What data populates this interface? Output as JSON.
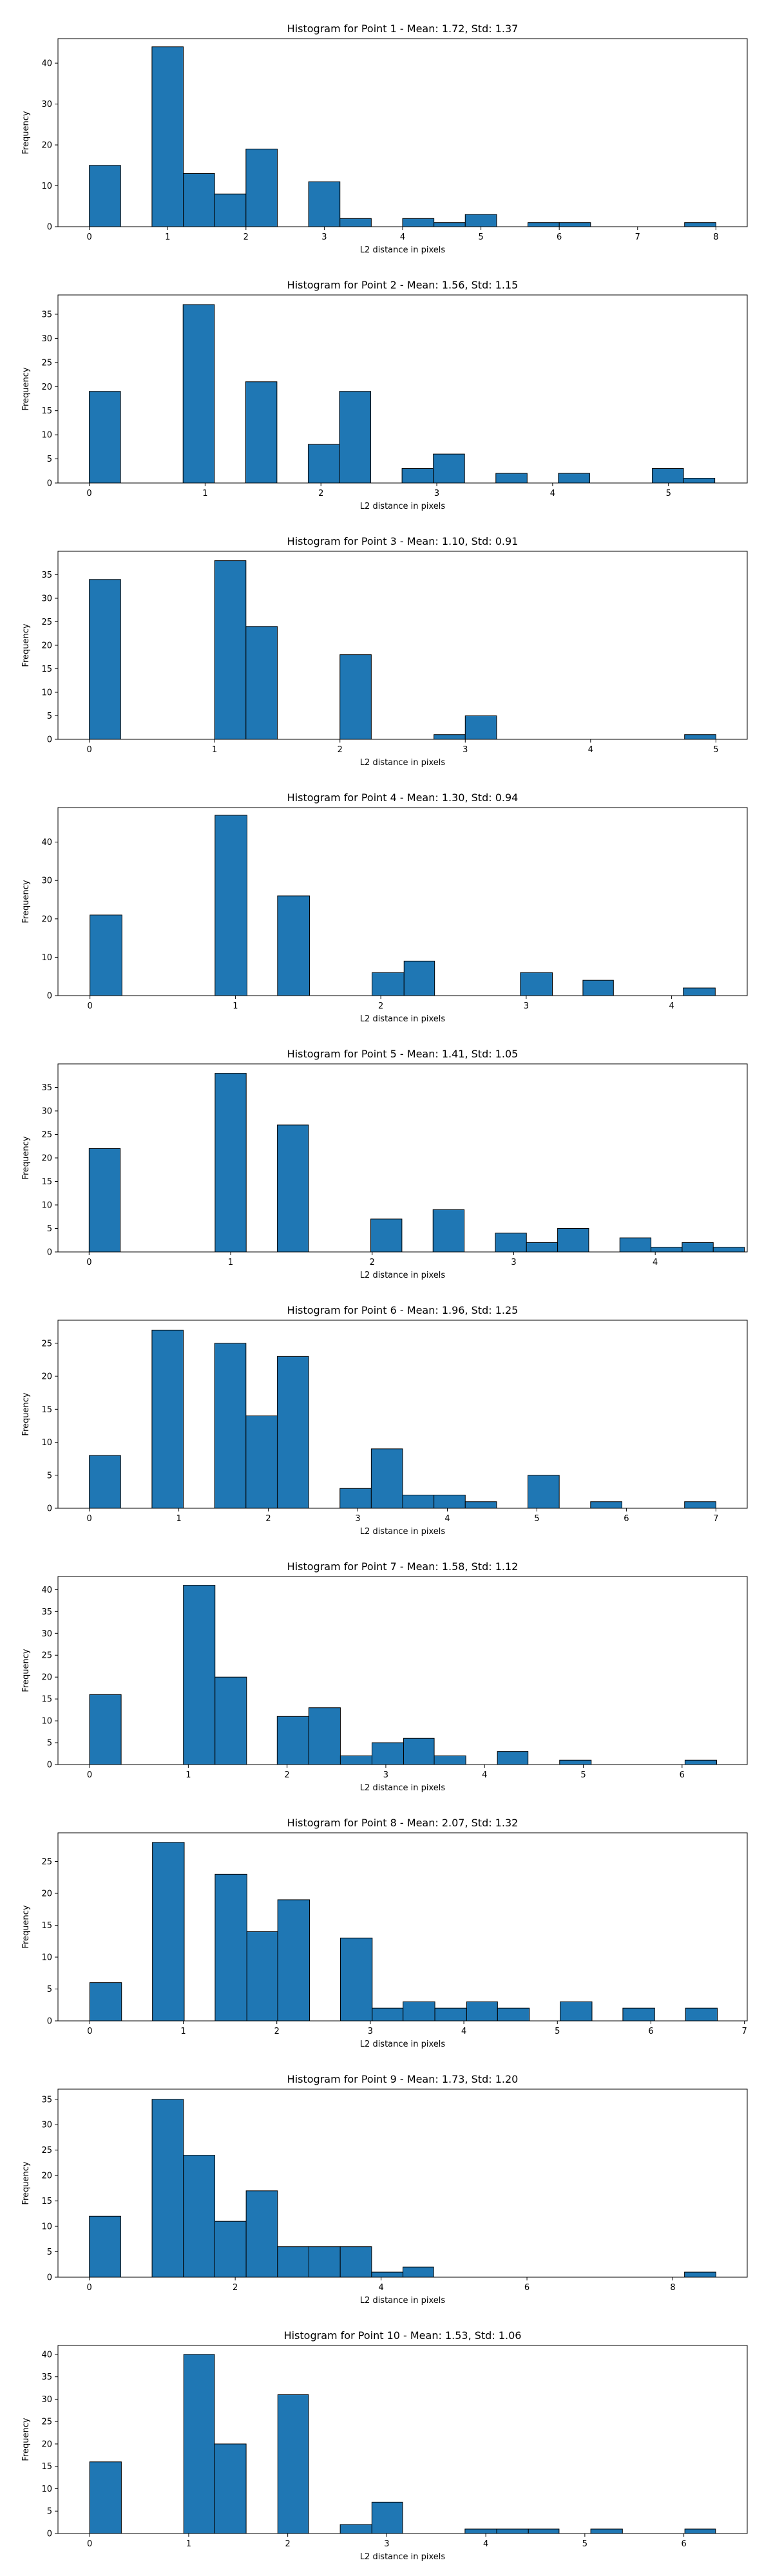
{
  "colors": {
    "bar_fill": "#1f77b4",
    "bar_edge": "#000000",
    "axes": "#000000",
    "background": "#ffffff"
  },
  "chart_data": [
    {
      "type": "bar",
      "title": "Histogram for Point 1 - Mean: 1.72, Std: 1.37",
      "xlabel": "L2 distance in pixels",
      "ylabel": "Frequency",
      "xlim": [
        -0.4,
        8.4
      ],
      "ylim": [
        0,
        46
      ],
      "xticks": [
        0,
        1,
        2,
        3,
        4,
        5,
        6,
        7,
        8
      ],
      "yticks": [
        0,
        10,
        20,
        30,
        40
      ],
      "grid": false,
      "bins": [
        {
          "x0": 0.0,
          "x1": 0.4,
          "count": 15
        },
        {
          "x0": 0.8,
          "x1": 1.2,
          "count": 44
        },
        {
          "x0": 1.2,
          "x1": 1.6,
          "count": 13
        },
        {
          "x0": 1.6,
          "x1": 2.0,
          "count": 8
        },
        {
          "x0": 2.0,
          "x1": 2.4,
          "count": 19
        },
        {
          "x0": 2.8,
          "x1": 3.2,
          "count": 11
        },
        {
          "x0": 3.2,
          "x1": 3.6,
          "count": 2
        },
        {
          "x0": 4.0,
          "x1": 4.4,
          "count": 2
        },
        {
          "x0": 4.4,
          "x1": 4.8,
          "count": 1
        },
        {
          "x0": 4.8,
          "x1": 5.2,
          "count": 3
        },
        {
          "x0": 5.6,
          "x1": 6.0,
          "count": 1
        },
        {
          "x0": 6.0,
          "x1": 6.4,
          "count": 1
        },
        {
          "x0": 7.6,
          "x1": 8.0,
          "count": 1
        }
      ]
    },
    {
      "type": "bar",
      "title": "Histogram for Point 2 - Mean: 1.56, Std: 1.15",
      "xlabel": "L2 distance in pixels",
      "ylabel": "Frequency",
      "xlim": [
        -0.27,
        5.68
      ],
      "ylim": [
        0,
        39
      ],
      "xticks": [
        0,
        1,
        2,
        3,
        4,
        5
      ],
      "yticks": [
        0,
        5,
        10,
        15,
        20,
        25,
        30,
        35
      ],
      "grid": false,
      "bins": [
        {
          "x0": 0.0,
          "x1": 0.27,
          "count": 19
        },
        {
          "x0": 0.81,
          "x1": 1.08,
          "count": 37
        },
        {
          "x0": 1.35,
          "x1": 1.62,
          "count": 21
        },
        {
          "x0": 1.89,
          "x1": 2.16,
          "count": 8
        },
        {
          "x0": 2.16,
          "x1": 2.43,
          "count": 19
        },
        {
          "x0": 2.7,
          "x1": 2.97,
          "count": 3
        },
        {
          "x0": 2.97,
          "x1": 3.24,
          "count": 6
        },
        {
          "x0": 3.51,
          "x1": 3.78,
          "count": 2
        },
        {
          "x0": 4.05,
          "x1": 4.32,
          "count": 2
        },
        {
          "x0": 4.86,
          "x1": 5.13,
          "count": 3
        },
        {
          "x0": 5.13,
          "x1": 5.4,
          "count": 1
        }
      ]
    },
    {
      "type": "bar",
      "title": "Histogram for Point 3 - Mean: 1.10, Std: 0.91",
      "xlabel": "L2 distance in pixels",
      "ylabel": "Frequency",
      "xlim": [
        -0.25,
        5.25
      ],
      "ylim": [
        0,
        40
      ],
      "xticks": [
        0,
        1,
        2,
        3,
        4,
        5
      ],
      "yticks": [
        0,
        5,
        10,
        15,
        20,
        25,
        30,
        35
      ],
      "grid": false,
      "bins": [
        {
          "x0": 0.0,
          "x1": 0.25,
          "count": 34
        },
        {
          "x0": 1.0,
          "x1": 1.25,
          "count": 38
        },
        {
          "x0": 1.25,
          "x1": 1.5,
          "count": 24
        },
        {
          "x0": 2.0,
          "x1": 2.25,
          "count": 18
        },
        {
          "x0": 2.75,
          "x1": 3.0,
          "count": 1
        },
        {
          "x0": 3.0,
          "x1": 3.25,
          "count": 5
        },
        {
          "x0": 4.75,
          "x1": 5.0,
          "count": 1
        }
      ]
    },
    {
      "type": "bar",
      "title": "Histogram for Point 4 - Mean: 1.30, Std: 0.94",
      "xlabel": "L2 distance in pixels",
      "ylabel": "Frequency",
      "xlim": [
        -0.22,
        4.52
      ],
      "ylim": [
        0,
        49
      ],
      "xticks": [
        0,
        1,
        2,
        3,
        4
      ],
      "yticks": [
        0,
        10,
        20,
        30,
        40
      ],
      "grid": false,
      "bins": [
        {
          "x0": 0.0,
          "x1": 0.22,
          "count": 21
        },
        {
          "x0": 0.86,
          "x1": 1.08,
          "count": 47
        },
        {
          "x0": 1.29,
          "x1": 1.51,
          "count": 26
        },
        {
          "x0": 1.94,
          "x1": 2.16,
          "count": 6
        },
        {
          "x0": 2.16,
          "x1": 2.37,
          "count": 9
        },
        {
          "x0": 2.96,
          "x1": 3.18,
          "count": 6
        },
        {
          "x0": 3.39,
          "x1": 3.6,
          "count": 4
        },
        {
          "x0": 4.08,
          "x1": 4.3,
          "count": 2
        }
      ]
    },
    {
      "type": "bar",
      "title": "Histogram for Point 5 - Mean: 1.41, Std: 1.05",
      "xlabel": "L2 distance in pixels",
      "ylabel": "Frequency",
      "xlim": [
        -0.22,
        4.65
      ],
      "ylim": [
        0,
        40
      ],
      "xticks": [
        0,
        1,
        2,
        3,
        4
      ],
      "yticks": [
        0,
        5,
        10,
        15,
        20,
        25,
        30,
        35
      ],
      "grid": false,
      "bins": [
        {
          "x0": 0.0,
          "x1": 0.22,
          "count": 22
        },
        {
          "x0": 0.89,
          "x1": 1.11,
          "count": 38
        },
        {
          "x0": 1.33,
          "x1": 1.55,
          "count": 27
        },
        {
          "x0": 1.99,
          "x1": 2.21,
          "count": 7
        },
        {
          "x0": 2.43,
          "x1": 2.65,
          "count": 9
        },
        {
          "x0": 2.87,
          "x1": 3.09,
          "count": 4
        },
        {
          "x0": 3.09,
          "x1": 3.31,
          "count": 2
        },
        {
          "x0": 3.31,
          "x1": 3.53,
          "count": 5
        },
        {
          "x0": 3.75,
          "x1": 3.97,
          "count": 3
        },
        {
          "x0": 3.97,
          "x1": 4.19,
          "count": 1
        },
        {
          "x0": 4.19,
          "x1": 4.41,
          "count": 2
        },
        {
          "x0": 4.41,
          "x1": 4.63,
          "count": 1
        }
      ]
    },
    {
      "type": "bar",
      "title": "Histogram for Point 6 - Mean: 1.96, Std: 1.25",
      "xlabel": "L2 distance in pixels",
      "ylabel": "Frequency",
      "xlim": [
        -0.35,
        7.35
      ],
      "ylim": [
        0,
        28.5
      ],
      "xticks": [
        0,
        1,
        2,
        3,
        4,
        5,
        6,
        7
      ],
      "yticks": [
        0,
        5,
        10,
        15,
        20,
        25
      ],
      "grid": false,
      "bins": [
        {
          "x0": 0.0,
          "x1": 0.35,
          "count": 8
        },
        {
          "x0": 0.7,
          "x1": 1.05,
          "count": 27
        },
        {
          "x0": 1.4,
          "x1": 1.75,
          "count": 25
        },
        {
          "x0": 1.75,
          "x1": 2.1,
          "count": 14
        },
        {
          "x0": 2.1,
          "x1": 2.45,
          "count": 23
        },
        {
          "x0": 2.8,
          "x1": 3.15,
          "count": 3
        },
        {
          "x0": 3.15,
          "x1": 3.5,
          "count": 9
        },
        {
          "x0": 3.5,
          "x1": 3.85,
          "count": 2
        },
        {
          "x0": 3.85,
          "x1": 4.2,
          "count": 2
        },
        {
          "x0": 4.2,
          "x1": 4.55,
          "count": 1
        },
        {
          "x0": 4.9,
          "x1": 5.25,
          "count": 5
        },
        {
          "x0": 5.6,
          "x1": 5.95,
          "count": 1
        },
        {
          "x0": 6.65,
          "x1": 7.0,
          "count": 1
        }
      ]
    },
    {
      "type": "bar",
      "title": "Histogram for Point 7 - Mean: 1.58, Std: 1.12",
      "xlabel": "L2 distance in pixels",
      "ylabel": "Frequency",
      "xlim": [
        -0.32,
        6.66
      ],
      "ylim": [
        0,
        43
      ],
      "xticks": [
        0,
        1,
        2,
        3,
        4,
        5,
        6
      ],
      "yticks": [
        0,
        5,
        10,
        15,
        20,
        25,
        30,
        35,
        40
      ],
      "grid": false,
      "bins": [
        {
          "x0": 0.0,
          "x1": 0.32,
          "count": 16
        },
        {
          "x0": 0.95,
          "x1": 1.27,
          "count": 41
        },
        {
          "x0": 1.27,
          "x1": 1.59,
          "count": 20
        },
        {
          "x0": 1.9,
          "x1": 2.22,
          "count": 11
        },
        {
          "x0": 2.22,
          "x1": 2.54,
          "count": 13
        },
        {
          "x0": 2.54,
          "x1": 2.86,
          "count": 2
        },
        {
          "x0": 2.86,
          "x1": 3.18,
          "count": 5
        },
        {
          "x0": 3.18,
          "x1": 3.49,
          "count": 6
        },
        {
          "x0": 3.49,
          "x1": 3.81,
          "count": 2
        },
        {
          "x0": 4.13,
          "x1": 4.44,
          "count": 3
        },
        {
          "x0": 4.76,
          "x1": 5.08,
          "count": 1
        },
        {
          "x0": 6.03,
          "x1": 6.35,
          "count": 1
        }
      ]
    },
    {
      "type": "bar",
      "title": "Histogram for Point 8 - Mean: 2.07, Std: 1.32",
      "xlabel": "L2 distance in pixels",
      "ylabel": "Frequency",
      "xlim": [
        -0.34,
        7.03
      ],
      "ylim": [
        0,
        29.5
      ],
      "xticks": [
        0,
        1,
        2,
        3,
        4,
        5,
        6,
        7
      ],
      "yticks": [
        0,
        5,
        10,
        15,
        20,
        25
      ],
      "grid": false,
      "bins": [
        {
          "x0": 0.0,
          "x1": 0.34,
          "count": 6
        },
        {
          "x0": 0.67,
          "x1": 1.01,
          "count": 28
        },
        {
          "x0": 1.34,
          "x1": 1.68,
          "count": 23
        },
        {
          "x0": 1.68,
          "x1": 2.01,
          "count": 14
        },
        {
          "x0": 2.01,
          "x1": 2.35,
          "count": 19
        },
        {
          "x0": 2.68,
          "x1": 3.02,
          "count": 13
        },
        {
          "x0": 3.02,
          "x1": 3.35,
          "count": 2
        },
        {
          "x0": 3.35,
          "x1": 3.69,
          "count": 3
        },
        {
          "x0": 3.69,
          "x1": 4.03,
          "count": 2
        },
        {
          "x0": 4.03,
          "x1": 4.36,
          "count": 3
        },
        {
          "x0": 4.36,
          "x1": 4.7,
          "count": 2
        },
        {
          "x0": 5.03,
          "x1": 5.37,
          "count": 3
        },
        {
          "x0": 5.7,
          "x1": 6.04,
          "count": 2
        },
        {
          "x0": 6.37,
          "x1": 6.71,
          "count": 2
        }
      ]
    },
    {
      "type": "bar",
      "title": "Histogram for Point 9 - Mean: 1.73, Std: 1.20",
      "xlabel": "L2 distance in pixels",
      "ylabel": "Frequency",
      "xlim": [
        -0.43,
        9.02
      ],
      "ylim": [
        0,
        37
      ],
      "xticks": [
        0,
        2,
        4,
        6,
        8
      ],
      "yticks": [
        0,
        5,
        10,
        15,
        20,
        25,
        30,
        35
      ],
      "grid": false,
      "bins": [
        {
          "x0": 0.0,
          "x1": 0.43,
          "count": 12
        },
        {
          "x0": 0.86,
          "x1": 1.29,
          "count": 35
        },
        {
          "x0": 1.29,
          "x1": 1.72,
          "count": 24
        },
        {
          "x0": 1.72,
          "x1": 2.15,
          "count": 11
        },
        {
          "x0": 2.15,
          "x1": 2.58,
          "count": 17
        },
        {
          "x0": 2.58,
          "x1": 3.01,
          "count": 6
        },
        {
          "x0": 3.01,
          "x1": 3.44,
          "count": 6
        },
        {
          "x0": 3.44,
          "x1": 3.87,
          "count": 6
        },
        {
          "x0": 3.87,
          "x1": 4.3,
          "count": 1
        },
        {
          "x0": 4.3,
          "x1": 4.72,
          "count": 2
        },
        {
          "x0": 8.16,
          "x1": 8.59,
          "count": 1
        }
      ]
    },
    {
      "type": "bar",
      "title": "Histogram for Point 10 - Mean: 1.53, Std: 1.06",
      "xlabel": "L2 distance in pixels",
      "ylabel": "Frequency",
      "xlim": [
        -0.32,
        6.64
      ],
      "ylim": [
        0,
        42
      ],
      "xticks": [
        0,
        1,
        2,
        3,
        4,
        5,
        6
      ],
      "yticks": [
        0,
        5,
        10,
        15,
        20,
        25,
        30,
        35,
        40
      ],
      "grid": false,
      "bins": [
        {
          "x0": 0.0,
          "x1": 0.32,
          "count": 16
        },
        {
          "x0": 0.95,
          "x1": 1.26,
          "count": 40
        },
        {
          "x0": 1.26,
          "x1": 1.58,
          "count": 20
        },
        {
          "x0": 1.9,
          "x1": 2.21,
          "count": 31
        },
        {
          "x0": 2.53,
          "x1": 2.85,
          "count": 2
        },
        {
          "x0": 2.85,
          "x1": 3.16,
          "count": 7
        },
        {
          "x0": 3.79,
          "x1": 4.11,
          "count": 1
        },
        {
          "x0": 4.11,
          "x1": 4.43,
          "count": 1
        },
        {
          "x0": 4.43,
          "x1": 4.74,
          "count": 1
        },
        {
          "x0": 5.06,
          "x1": 5.38,
          "count": 1
        },
        {
          "x0": 6.01,
          "x1": 6.32,
          "count": 1
        }
      ]
    }
  ]
}
